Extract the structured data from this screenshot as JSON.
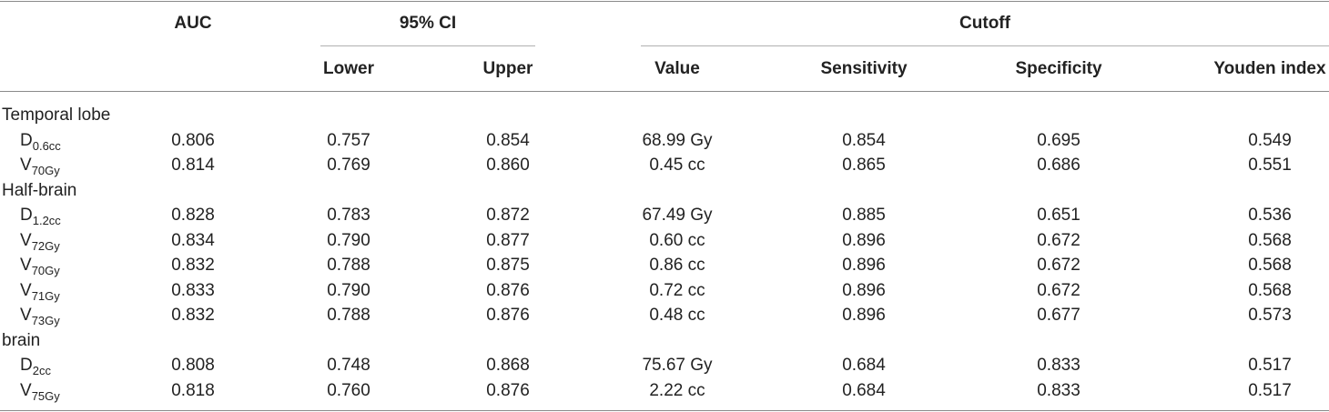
{
  "headers": {
    "auc": "AUC",
    "ci": "95% CI",
    "cutoff": "Cutoff",
    "lower": "Lower",
    "upper": "Upper",
    "value": "Value",
    "sensitivity": "Sensitivity",
    "specificity": "Specificity",
    "youden": "Youden index"
  },
  "groups": [
    {
      "label": "Temporal lobe",
      "rows": [
        {
          "base": "D",
          "sub": "0.6cc",
          "auc": "0.806",
          "lower": "0.757",
          "upper": "0.854",
          "value": "68.99 Gy",
          "sensitivity": "0.854",
          "specificity": "0.695",
          "youden": "0.549"
        },
        {
          "base": "V",
          "sub": "70Gy",
          "auc": "0.814",
          "lower": "0.769",
          "upper": "0.860",
          "value": "0.45 cc",
          "sensitivity": "0.865",
          "specificity": "0.686",
          "youden": "0.551"
        }
      ]
    },
    {
      "label": "Half-brain",
      "rows": [
        {
          "base": "D",
          "sub": "1.2cc",
          "auc": "0.828",
          "lower": "0.783",
          "upper": "0.872",
          "value": "67.49 Gy",
          "sensitivity": "0.885",
          "specificity": "0.651",
          "youden": "0.536"
        },
        {
          "base": "V",
          "sub": "72Gy",
          "auc": "0.834",
          "lower": "0.790",
          "upper": "0.877",
          "value": "0.60 cc",
          "sensitivity": "0.896",
          "specificity": "0.672",
          "youden": "0.568"
        },
        {
          "base": "V",
          "sub": "70Gy",
          "auc": "0.832",
          "lower": "0.788",
          "upper": "0.875",
          "value": "0.86 cc",
          "sensitivity": "0.896",
          "specificity": "0.672",
          "youden": "0.568"
        },
        {
          "base": "V",
          "sub": "71Gy",
          "auc": "0.833",
          "lower": "0.790",
          "upper": "0.876",
          "value": "0.72 cc",
          "sensitivity": "0.896",
          "specificity": "0.672",
          "youden": "0.568"
        },
        {
          "base": "V",
          "sub": "73Gy",
          "auc": "0.832",
          "lower": "0.788",
          "upper": "0.876",
          "value": "0.48 cc",
          "sensitivity": "0.896",
          "specificity": "0.677",
          "youden": "0.573"
        }
      ]
    },
    {
      "label": "brain",
      "rows": [
        {
          "base": "D",
          "sub": "2cc",
          "auc": "0.808",
          "lower": "0.748",
          "upper": "0.868",
          "value": "75.67 Gy",
          "sensitivity": "0.684",
          "specificity": "0.833",
          "youden": "0.517"
        },
        {
          "base": "V",
          "sub": "75Gy",
          "auc": "0.818",
          "lower": "0.760",
          "upper": "0.876",
          "value": "2.22 cc",
          "sensitivity": "0.684",
          "specificity": "0.833",
          "youden": "0.517"
        }
      ]
    }
  ]
}
